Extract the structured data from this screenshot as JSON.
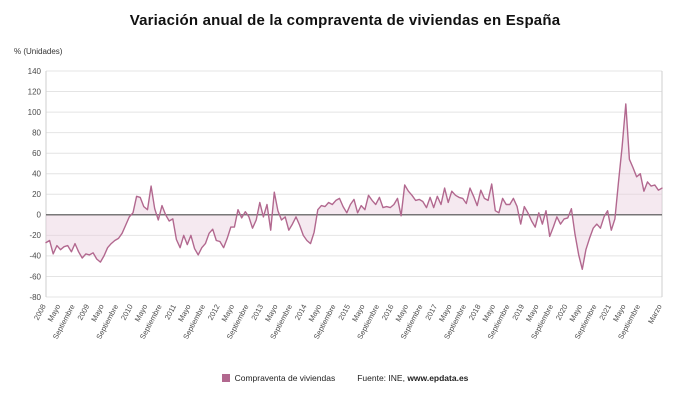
{
  "title": "Variación anual de la compraventa de viviendas en España",
  "y_axis_label": "% (Unidades)",
  "legend": {
    "label": "Compraventa de viviendas"
  },
  "source": {
    "prefix": "Fuente: INE, ",
    "url": "www.epdata.es"
  },
  "chart_data": {
    "type": "line",
    "series_name": "Compraventa de viviendas",
    "ylabel": "% (Unidades)",
    "ylim": [
      -80,
      140
    ],
    "grid": true,
    "legend_position": "bottom",
    "line_color": "#b2688f",
    "fill_color": "#e8cfde",
    "y_ticks": [
      140,
      120,
      100,
      80,
      60,
      40,
      20,
      0,
      -20,
      -40,
      -60,
      -80
    ],
    "x_ticks": [
      {
        "label": "2008",
        "index": 0
      },
      {
        "label": "Mayo",
        "index": 4
      },
      {
        "label": "Septiembre",
        "index": 8
      },
      {
        "label": "2009",
        "index": 12
      },
      {
        "label": "Mayo",
        "index": 16
      },
      {
        "label": "Septiembre",
        "index": 20
      },
      {
        "label": "2010",
        "index": 24
      },
      {
        "label": "Mayo",
        "index": 28
      },
      {
        "label": "Septiembre",
        "index": 32
      },
      {
        "label": "2011",
        "index": 36
      },
      {
        "label": "Mayo",
        "index": 40
      },
      {
        "label": "Septiembre",
        "index": 44
      },
      {
        "label": "2012",
        "index": 48
      },
      {
        "label": "Mayo",
        "index": 52
      },
      {
        "label": "Septiembre",
        "index": 56
      },
      {
        "label": "2013",
        "index": 60
      },
      {
        "label": "Mayo",
        "index": 64
      },
      {
        "label": "Septiembre",
        "index": 68
      },
      {
        "label": "2014",
        "index": 72
      },
      {
        "label": "Mayo",
        "index": 76
      },
      {
        "label": "Septiembre",
        "index": 80
      },
      {
        "label": "2015",
        "index": 84
      },
      {
        "label": "Mayo",
        "index": 88
      },
      {
        "label": "Septiembre",
        "index": 92
      },
      {
        "label": "2016",
        "index": 96
      },
      {
        "label": "Mayo",
        "index": 100
      },
      {
        "label": "Septiembre",
        "index": 104
      },
      {
        "label": "2017",
        "index": 108
      },
      {
        "label": "Mayo",
        "index": 112
      },
      {
        "label": "Septiembre",
        "index": 116
      },
      {
        "label": "2018",
        "index": 120
      },
      {
        "label": "Mayo",
        "index": 124
      },
      {
        "label": "Septiembre",
        "index": 128
      },
      {
        "label": "2019",
        "index": 132
      },
      {
        "label": "Mayo",
        "index": 136
      },
      {
        "label": "Septiembre",
        "index": 140
      },
      {
        "label": "2020",
        "index": 144
      },
      {
        "label": "Mayo",
        "index": 148
      },
      {
        "label": "Septiembre",
        "index": 152
      },
      {
        "label": "2021",
        "index": 156
      },
      {
        "label": "Mayo",
        "index": 160
      },
      {
        "label": "Septiembre",
        "index": 164
      },
      {
        "label": "Marzo",
        "index": 170
      }
    ],
    "values": [
      -27,
      -25,
      -38,
      -30,
      -34,
      -31,
      -30,
      -36,
      -28,
      -36,
      -42,
      -38,
      -39,
      -37,
      -43,
      -46,
      -40,
      -32,
      -28,
      -25,
      -23,
      -18,
      -10,
      -2,
      2,
      18,
      17,
      8,
      5,
      28,
      6,
      -5,
      9,
      0,
      -6,
      -4,
      -24,
      -32,
      -20,
      -29,
      -20,
      -33,
      -39,
      -32,
      -28,
      -18,
      -14,
      -25,
      -26,
      -32,
      -23,
      -12,
      -12,
      5,
      -3,
      3,
      -2,
      -13,
      -5,
      12,
      -2,
      10,
      -15,
      22,
      4,
      -5,
      -2,
      -15,
      -9,
      -2,
      -10,
      -20,
      -25,
      -28,
      -17,
      5,
      9,
      8,
      12,
      10,
      14,
      16,
      8,
      2,
      10,
      15,
      2,
      9,
      5,
      19,
      14,
      10,
      17,
      7,
      8,
      7,
      10,
      16,
      -1,
      29,
      23,
      19,
      14,
      15,
      13,
      7,
      17,
      7,
      18,
      10,
      26,
      12,
      23,
      19,
      17,
      16,
      11,
      26,
      18,
      9,
      24,
      16,
      14,
      30,
      4,
      2,
      16,
      10,
      10,
      16,
      8,
      -9,
      8,
      2,
      -6,
      -12,
      2,
      -9,
      4,
      -21,
      -12,
      -2,
      -9,
      -4,
      -3,
      6,
      -19,
      -39,
      -53,
      -34,
      -23,
      -13,
      -9,
      -13,
      -2,
      4,
      -15,
      -4,
      32,
      66,
      108,
      54,
      46,
      37,
      40,
      23,
      32,
      28,
      29,
      24,
      26
    ]
  }
}
